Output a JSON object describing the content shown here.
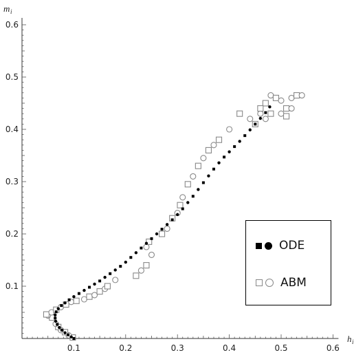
{
  "chart_data": {
    "type": "scatter",
    "xlabel": "h",
    "xlabel_sub": "i",
    "ylabel": "m",
    "ylabel_sub": "i",
    "xlim": [
      0,
      0.6
    ],
    "ylim": [
      0,
      0.6
    ],
    "x_ticks": [
      "0.1",
      "0.2",
      "0.3",
      "0.4",
      "0.5",
      "0.6"
    ],
    "y_ticks": [
      "0.1",
      "0.2",
      "0.3",
      "0.4",
      "0.5",
      "0.6"
    ],
    "legend_position": "lower-right",
    "series": [
      {
        "name": "ODE",
        "marker": "filled-square-and-circle",
        "color": "#000000",
        "points": [
          [
            0.1,
            0.0
          ],
          [
            0.095,
            0.003
          ],
          [
            0.089,
            0.007
          ],
          [
            0.083,
            0.011
          ],
          [
            0.077,
            0.016
          ],
          [
            0.072,
            0.021
          ],
          [
            0.068,
            0.027
          ],
          [
            0.065,
            0.033
          ],
          [
            0.064,
            0.039
          ],
          [
            0.064,
            0.045
          ],
          [
            0.066,
            0.051
          ],
          [
            0.07,
            0.057
          ],
          [
            0.076,
            0.063
          ],
          [
            0.083,
            0.068
          ],
          [
            0.091,
            0.074
          ],
          [
            0.1,
            0.08
          ],
          [
            0.11,
            0.086
          ],
          [
            0.12,
            0.092
          ],
          [
            0.13,
            0.098
          ],
          [
            0.14,
            0.104
          ],
          [
            0.15,
            0.11
          ],
          [
            0.16,
            0.117
          ],
          [
            0.17,
            0.124
          ],
          [
            0.18,
            0.131
          ],
          [
            0.19,
            0.138
          ],
          [
            0.2,
            0.146
          ],
          [
            0.21,
            0.155
          ],
          [
            0.22,
            0.164
          ],
          [
            0.23,
            0.173
          ],
          [
            0.24,
            0.182
          ],
          [
            0.25,
            0.191
          ],
          [
            0.26,
            0.2
          ],
          [
            0.27,
            0.209
          ],
          [
            0.28,
            0.218
          ],
          [
            0.29,
            0.227
          ],
          [
            0.3,
            0.237
          ],
          [
            0.31,
            0.248
          ],
          [
            0.32,
            0.26
          ],
          [
            0.33,
            0.272
          ],
          [
            0.34,
            0.285
          ],
          [
            0.35,
            0.298
          ],
          [
            0.36,
            0.311
          ],
          [
            0.37,
            0.324
          ],
          [
            0.38,
            0.336
          ],
          [
            0.39,
            0.347
          ],
          [
            0.4,
            0.357
          ],
          [
            0.41,
            0.367
          ],
          [
            0.42,
            0.377
          ],
          [
            0.43,
            0.388
          ],
          [
            0.44,
            0.399
          ],
          [
            0.45,
            0.41
          ],
          [
            0.46,
            0.421
          ],
          [
            0.47,
            0.432
          ],
          [
            0.478,
            0.443
          ]
        ]
      },
      {
        "name": "ABM",
        "marker": "open-square-and-circle",
        "color": "#888888",
        "points": [
          [
            0.098,
            0.002
          ],
          [
            0.09,
            0.006
          ],
          [
            0.083,
            0.012
          ],
          [
            0.075,
            0.016
          ],
          [
            0.07,
            0.022
          ],
          [
            0.065,
            0.028
          ],
          [
            0.058,
            0.04
          ],
          [
            0.05,
            0.044
          ],
          [
            0.047,
            0.046
          ],
          [
            0.057,
            0.05
          ],
          [
            0.066,
            0.055
          ],
          [
            0.075,
            0.06
          ],
          [
            0.085,
            0.065
          ],
          [
            0.095,
            0.07
          ],
          [
            0.105,
            0.072
          ],
          [
            0.12,
            0.075
          ],
          [
            0.13,
            0.08
          ],
          [
            0.14,
            0.083
          ],
          [
            0.15,
            0.09
          ],
          [
            0.16,
            0.095
          ],
          [
            0.165,
            0.1
          ],
          [
            0.18,
            0.112
          ],
          [
            0.22,
            0.12
          ],
          [
            0.23,
            0.13
          ],
          [
            0.24,
            0.14
          ],
          [
            0.24,
            0.175
          ],
          [
            0.245,
            0.185
          ],
          [
            0.25,
            0.16
          ],
          [
            0.27,
            0.2
          ],
          [
            0.28,
            0.21
          ],
          [
            0.29,
            0.23
          ],
          [
            0.3,
            0.24
          ],
          [
            0.305,
            0.255
          ],
          [
            0.31,
            0.27
          ],
          [
            0.32,
            0.295
          ],
          [
            0.33,
            0.31
          ],
          [
            0.34,
            0.33
          ],
          [
            0.35,
            0.345
          ],
          [
            0.36,
            0.36
          ],
          [
            0.37,
            0.37
          ],
          [
            0.38,
            0.38
          ],
          [
            0.4,
            0.4
          ],
          [
            0.42,
            0.43
          ],
          [
            0.44,
            0.42
          ],
          [
            0.45,
            0.41
          ],
          [
            0.46,
            0.43
          ],
          [
            0.47,
            0.45
          ],
          [
            0.48,
            0.465
          ],
          [
            0.49,
            0.46
          ],
          [
            0.5,
            0.455
          ],
          [
            0.51,
            0.44
          ],
          [
            0.52,
            0.46
          ],
          [
            0.53,
            0.465
          ],
          [
            0.54,
            0.465
          ],
          [
            0.46,
            0.44
          ],
          [
            0.47,
            0.42
          ],
          [
            0.48,
            0.43
          ],
          [
            0.5,
            0.43
          ],
          [
            0.51,
            0.425
          ],
          [
            0.52,
            0.44
          ]
        ]
      }
    ]
  },
  "legend": {
    "ode_label": "ODE",
    "abm_label": "ABM"
  }
}
